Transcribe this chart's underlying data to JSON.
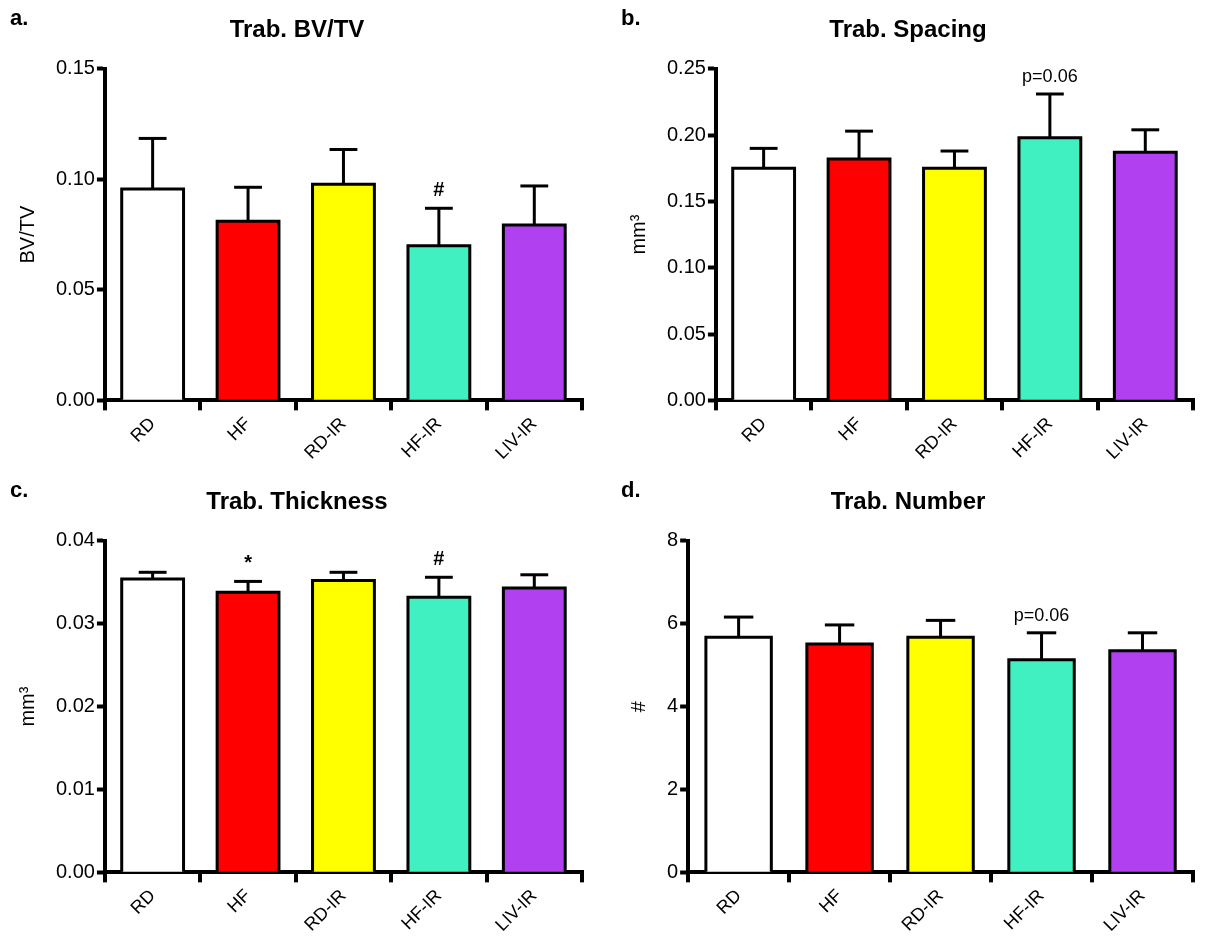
{
  "chart_data": [
    {
      "type": "bar",
      "title": "Trab. BV/TV",
      "ylabel": "BV/TV",
      "categories": [
        "RD",
        "HF",
        "RD-IR",
        "HF-IR",
        "LIV-IR"
      ],
      "values": [
        0.0956,
        0.081,
        0.0978,
        0.07,
        0.0793
      ],
      "errors": [
        [
          0.0956,
          0.1185
        ],
        [
          0.081,
          0.0964
        ],
        [
          0.0978,
          0.1135
        ],
        [
          0.07,
          0.0869
        ],
        [
          0.0793,
          0.097
        ]
      ],
      "colors": [
        "#ffffff",
        "#ff0000",
        "#ffff00",
        "#40f0c0",
        "#b040f0"
      ],
      "ylim": [
        0,
        0.15
      ],
      "yticks": [
        {
          "value": 0,
          "label": "0.00"
        },
        {
          "value": 0.05,
          "label": "0.05"
        },
        {
          "value": 0.1,
          "label": "0.10"
        },
        {
          "value": 0.15,
          "label": "0.15"
        }
      ],
      "annotations": [
        "a.",
        {
          "text": "#",
          "x": "HF-IR",
          "y": 0.0869
        }
      ]
    },
    {
      "type": "bar",
      "title": "Trab. Spacing",
      "ylabel": "mm³",
      "categories": [
        "RD",
        "HF",
        "RD-IR",
        "HF-IR",
        "LIV-IR"
      ],
      "values": [
        0.175,
        0.182,
        0.175,
        0.198,
        0.187
      ],
      "errors": [
        [
          0.175,
          0.19
        ],
        [
          0.182,
          0.203
        ],
        [
          0.175,
          0.188
        ],
        [
          0.198,
          0.231
        ],
        [
          0.187,
          0.204
        ]
      ],
      "colors": [
        "#ffffff",
        "#ff0000",
        "#ffff00",
        "#40f0c0",
        "#b040f0"
      ],
      "ylim": [
        0,
        0.25
      ],
      "yticks": [
        {
          "value": 0,
          "label": "0.00"
        },
        {
          "value": 0.05,
          "label": "0.05"
        },
        {
          "value": 0.1,
          "label": "0.10"
        },
        {
          "value": 0.15,
          "label": "0.15"
        },
        {
          "value": 0.2,
          "label": "0.20"
        },
        {
          "value": 0.25,
          "label": "0.25"
        }
      ],
      "annotations": [
        "b.",
        {
          "text": "p=0.06",
          "x": "HF-IR",
          "y": 0.231
        }
      ]
    },
    {
      "type": "bar",
      "title": "Trab. Thickness",
      "ylabel": "mm³",
      "categories": [
        "RD",
        "HF",
        "RD-IR",
        "HF-IR",
        "LIV-IR"
      ],
      "values": [
        0.0354,
        0.0338,
        0.0352,
        0.0332,
        0.0343
      ],
      "errors": [
        [
          0.0354,
          0.0362
        ],
        [
          0.0338,
          0.0351
        ],
        [
          0.0352,
          0.0362
        ],
        [
          0.0332,
          0.0356
        ],
        [
          0.0343,
          0.0359
        ]
      ],
      "colors": [
        "#ffffff",
        "#ff0000",
        "#ffff00",
        "#40f0c0",
        "#b040f0"
      ],
      "ylim": [
        0,
        0.04
      ],
      "yticks": [
        {
          "value": 0,
          "label": "0.00"
        },
        {
          "value": 0.01,
          "label": "0.01"
        },
        {
          "value": 0.02,
          "label": "0.02"
        },
        {
          "value": 0.03,
          "label": "0.03"
        },
        {
          "value": 0.04,
          "label": "0.04"
        }
      ],
      "annotations": [
        "c.",
        {
          "text": "*",
          "x": "HF",
          "y": 0.0351
        },
        {
          "text": "#",
          "x": "HF-IR",
          "y": 0.0356
        }
      ]
    },
    {
      "type": "bar",
      "title": "Trab. Number",
      "ylabel": "#",
      "categories": [
        "RD",
        "HF",
        "RD-IR",
        "HF-IR",
        "LIV-IR"
      ],
      "values": [
        5.67,
        5.51,
        5.67,
        5.13,
        5.35
      ],
      "errors": [
        [
          5.67,
          6.16
        ],
        [
          5.51,
          5.97
        ],
        [
          5.67,
          6.08
        ],
        [
          5.13,
          5.78
        ],
        [
          5.35,
          5.78
        ]
      ],
      "colors": [
        "#ffffff",
        "#ff0000",
        "#ffff00",
        "#40f0c0",
        "#b040f0"
      ],
      "ylim": [
        0,
        8
      ],
      "yticks": [
        0,
        2,
        4,
        6,
        8
      ],
      "annotations": [
        "d.",
        {
          "text": "p=0.06",
          "x": "HF-IR",
          "y": 5.78
        }
      ]
    }
  ]
}
